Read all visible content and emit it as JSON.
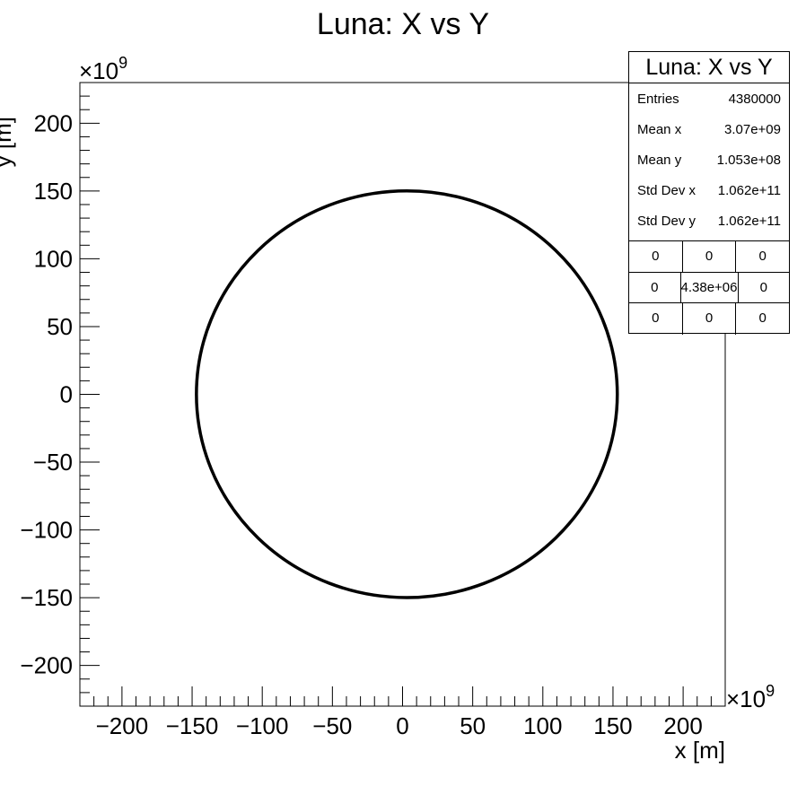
{
  "chart_data": {
    "type": "scatter",
    "title": "Luna: X vs Y",
    "xlabel": "x [m]",
    "ylabel": "y [m]",
    "x_multiplier": "×10",
    "y_multiplier": "×10",
    "multiplier_exponent": "9",
    "xlim": [
      -230,
      230
    ],
    "ylim": [
      -230,
      230
    ],
    "x_ticks": [
      -200,
      -150,
      -100,
      -50,
      0,
      50,
      100,
      150,
      200
    ],
    "y_ticks": [
      -200,
      -150,
      -100,
      -50,
      0,
      50,
      100,
      150,
      200
    ],
    "x_tick_labels": [
      "−200",
      "−150",
      "−100",
      "−50",
      "0",
      "50",
      "100",
      "150",
      "200"
    ],
    "y_tick_labels": [
      "−200",
      "−150",
      "−100",
      "−50",
      "0",
      "50",
      "100",
      "150",
      "200"
    ],
    "orbit": {
      "center": [
        3.07,
        0.1053
      ],
      "radius": 150,
      "unit": "1e9 m"
    },
    "grid": false,
    "line_color": "#000000"
  },
  "stats_box": {
    "title": "Luna: X vs Y",
    "rows": [
      {
        "label": "Entries",
        "value": "4380000"
      },
      {
        "label": "Mean x",
        "value": "3.07e+09"
      },
      {
        "label": "Mean y",
        "value": "1.053e+08"
      },
      {
        "label": "Std Dev x",
        "value": "1.062e+11"
      },
      {
        "label": "Std Dev y",
        "value": "1.062e+11"
      }
    ],
    "grid": [
      [
        "0",
        "0",
        "0"
      ],
      [
        "0",
        "4.38e+06",
        "0"
      ],
      [
        "0",
        "0",
        "0"
      ]
    ]
  }
}
